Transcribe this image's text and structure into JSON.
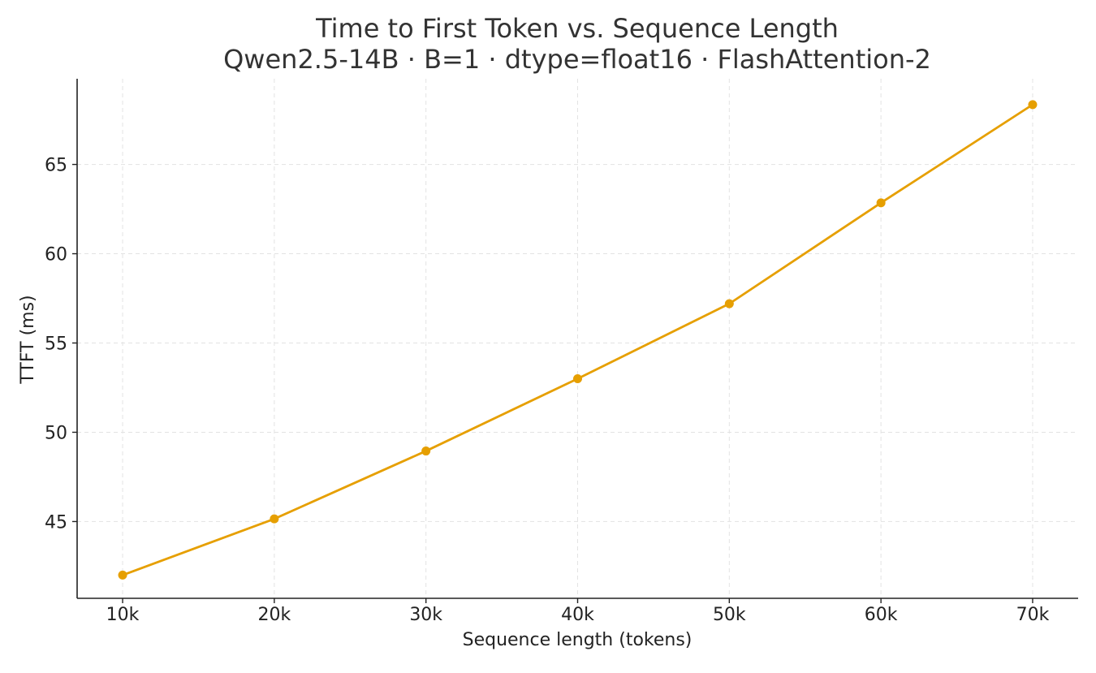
{
  "chart_data": {
    "type": "line",
    "title": "Time to First Token vs. Sequence Length",
    "subtitle": "Qwen2.5-14B · B=1 · dtype=float16 · FlashAttention-2",
    "xlabel": "Sequence length (tokens)",
    "ylabel": "TTFT (ms)",
    "x": [
      10000,
      20000,
      30000,
      40000,
      50000,
      60000,
      70000
    ],
    "x_tick_labels": [
      "10k",
      "20k",
      "30k",
      "40k",
      "50k",
      "60k",
      "70k"
    ],
    "y_ticks": [
      45,
      50,
      55,
      60,
      65
    ],
    "xlim": [
      7000,
      73000
    ],
    "ylim": [
      40.7,
      69.8
    ],
    "grid": true,
    "legend": "none",
    "series": [
      {
        "values": [
          42.0,
          45.15,
          48.95,
          53.0,
          57.2,
          62.85,
          68.35
        ],
        "color": "#E69F00",
        "marker": "circle"
      }
    ]
  }
}
